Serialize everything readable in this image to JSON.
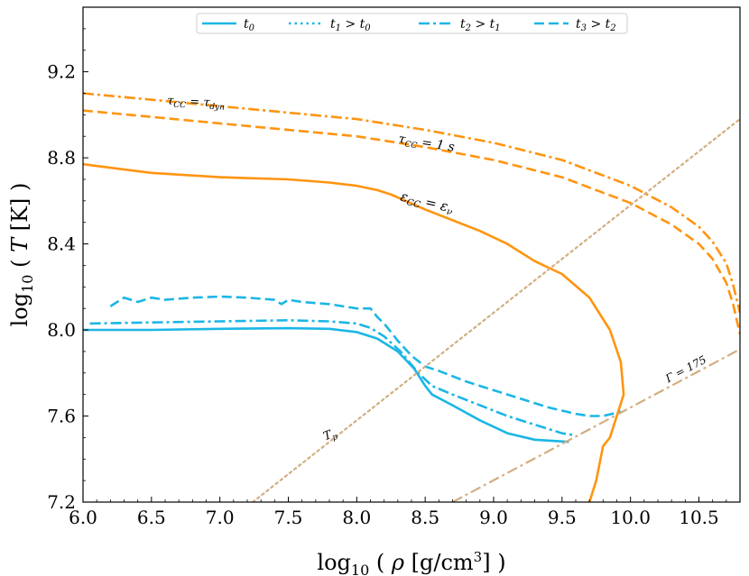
{
  "chart_data": {
    "type": "line",
    "xlabel": "log10 ( ρ [g/cm3] )",
    "ylabel": "log10 ( T [K] )",
    "xlim": [
      6.0,
      10.8
    ],
    "ylim": [
      7.2,
      9.5
    ],
    "xticks": [
      "6.0",
      "6.5",
      "7.0",
      "7.5",
      "8.0",
      "8.5",
      "9.0",
      "9.5",
      "10.0",
      "10.5"
    ],
    "yticks": [
      "7.2",
      "7.6",
      "8.0",
      "8.4",
      "8.8",
      "9.2"
    ],
    "legend": [
      "t0",
      "t1 > t0",
      "t2 > t1",
      "t3 > t2"
    ],
    "colors": {
      "blue": "#1bb6e6",
      "orange": "#ff9410",
      "tan": "#d2ae80"
    },
    "series": [
      {
        "name": "t0",
        "style": "solid",
        "color": "#1bb6e6",
        "x": [
          6.0,
          6.5,
          7.0,
          7.5,
          7.8,
          8.0,
          8.15,
          8.3,
          8.42,
          8.5,
          8.55,
          8.7,
          8.9,
          9.1,
          9.3,
          9.55
        ],
        "y": [
          8.0,
          8.0,
          8.005,
          8.008,
          8.005,
          7.99,
          7.96,
          7.9,
          7.82,
          7.74,
          7.7,
          7.65,
          7.58,
          7.52,
          7.49,
          7.48
        ]
      },
      {
        "name": "t2 > t1",
        "style": "dashdot",
        "color": "#1bb6e6",
        "x": [
          6.05,
          6.5,
          7.0,
          7.5,
          7.8,
          8.0,
          8.1,
          8.2,
          8.32,
          8.45,
          8.55,
          8.7,
          8.9,
          9.1,
          9.3,
          9.5,
          9.6
        ],
        "y": [
          8.03,
          8.035,
          8.04,
          8.045,
          8.04,
          8.03,
          8.01,
          7.97,
          7.9,
          7.8,
          7.74,
          7.7,
          7.65,
          7.6,
          7.56,
          7.52,
          7.51
        ]
      },
      {
        "name": "t3 > t2",
        "style": "dashed",
        "color": "#1bb6e6",
        "x": [
          6.2,
          6.3,
          6.4,
          6.5,
          6.6,
          6.8,
          7.0,
          7.2,
          7.4,
          7.45,
          7.5,
          7.6,
          7.8,
          8.0,
          8.1,
          8.15,
          8.2,
          8.3,
          8.4,
          8.5,
          8.6,
          8.8,
          9.0,
          9.2,
          9.4,
          9.6,
          9.7,
          9.8,
          9.93
        ],
        "y": [
          8.11,
          8.15,
          8.13,
          8.15,
          8.14,
          8.15,
          8.155,
          8.15,
          8.14,
          8.12,
          8.14,
          8.13,
          8.12,
          8.1,
          8.1,
          8.06,
          8.03,
          7.95,
          7.88,
          7.83,
          7.81,
          7.76,
          7.72,
          7.68,
          7.64,
          7.61,
          7.6,
          7.6,
          7.62
        ]
      },
      {
        "name": "ε_CC = ε_ν",
        "style": "solid",
        "color": "#ff9410",
        "x": [
          6.0,
          6.5,
          7.0,
          7.5,
          7.8,
          8.0,
          8.15,
          8.25,
          8.5,
          8.7,
          8.9,
          9.1,
          9.3,
          9.5,
          9.7,
          9.85,
          9.93,
          9.95,
          9.9,
          9.85,
          9.8,
          9.75,
          9.7
        ],
        "y": [
          8.77,
          8.73,
          8.71,
          8.7,
          8.685,
          8.67,
          8.65,
          8.63,
          8.56,
          8.51,
          8.46,
          8.4,
          8.32,
          8.26,
          8.15,
          8.0,
          7.85,
          7.7,
          7.6,
          7.5,
          7.46,
          7.3,
          7.2
        ]
      },
      {
        "name": "τ_CC = 1 s",
        "style": "dashed",
        "color": "#ff9410",
        "x": [
          6.0,
          6.5,
          7.0,
          7.5,
          8.0,
          8.5,
          9.0,
          9.5,
          10.0,
          10.3,
          10.5,
          10.6,
          10.7,
          10.75,
          10.8
        ],
        "y": [
          9.02,
          8.99,
          8.96,
          8.93,
          8.9,
          8.85,
          8.79,
          8.71,
          8.59,
          8.49,
          8.4,
          8.33,
          8.22,
          8.12,
          7.98
        ]
      },
      {
        "name": "τ_CC = τ_dyn",
        "style": "dashdot",
        "color": "#ff9410",
        "x": [
          6.0,
          6.5,
          7.0,
          7.5,
          8.0,
          8.5,
          9.0,
          9.5,
          10.0,
          10.3,
          10.5,
          10.6,
          10.7,
          10.75,
          10.8
        ],
        "y": [
          9.1,
          9.07,
          9.04,
          9.01,
          8.98,
          8.93,
          8.87,
          8.79,
          8.67,
          8.57,
          8.48,
          8.41,
          8.31,
          8.21,
          8.08
        ]
      },
      {
        "name": "T_p",
        "style": "dotted",
        "color": "#d2ae80",
        "x": [
          7.24,
          10.8
        ],
        "y": [
          7.2,
          8.98
        ]
      },
      {
        "name": "Γ = 175",
        "style": "dashdot",
        "color": "#d2ae80",
        "x": [
          8.7,
          10.8
        ],
        "y": [
          7.2,
          7.91
        ]
      }
    ],
    "annotations": [
      {
        "id": "tau-dyn",
        "text": "τCC = τdyn"
      },
      {
        "id": "tau-1s",
        "text": "τCC = 1 s"
      },
      {
        "id": "eps",
        "text": "εCC = εν"
      },
      {
        "id": "gamma",
        "text": "Γ = 175"
      },
      {
        "id": "tp",
        "text": "Tp"
      }
    ]
  }
}
